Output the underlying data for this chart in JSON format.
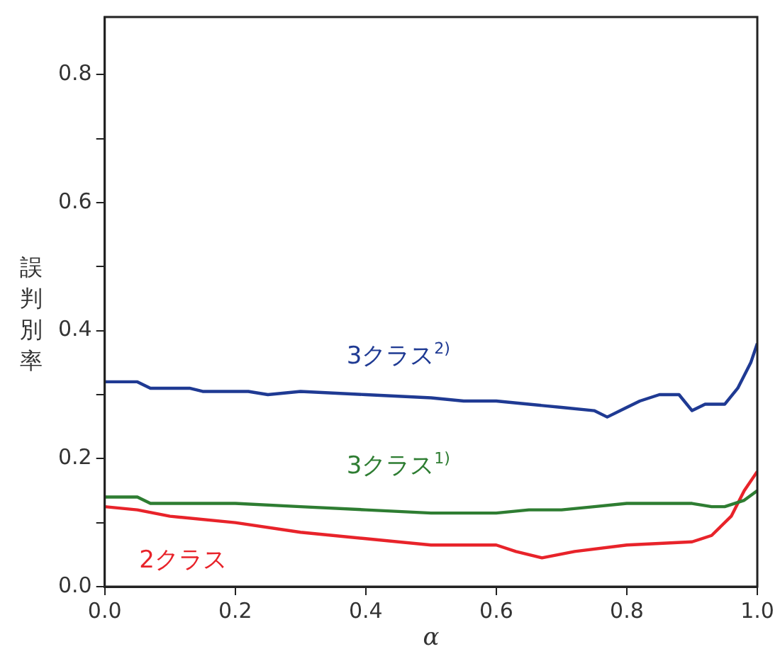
{
  "chart_data": {
    "type": "line",
    "xlabel": "α",
    "ylabel": "誤判別率",
    "xlim": [
      0,
      1
    ],
    "ylim": [
      0,
      0.89
    ],
    "xticks": [
      {
        "value": 0,
        "label": "0.0"
      },
      {
        "value": 0.2,
        "label": "0.2"
      },
      {
        "value": 0.4,
        "label": "0.4"
      },
      {
        "value": 0.6,
        "label": "0.6"
      },
      {
        "value": 0.8,
        "label": "0.8"
      },
      {
        "value": 1,
        "label": "1.0"
      }
    ],
    "yticks": [
      {
        "value": 0,
        "label": "0.0"
      },
      {
        "value": 0.1,
        "label": null
      },
      {
        "value": 0.2,
        "label": "0.2"
      },
      {
        "value": 0.3,
        "label": null
      },
      {
        "value": 0.4,
        "label": "0.4"
      },
      {
        "value": 0.5,
        "label": null
      },
      {
        "value": 0.6,
        "label": "0.6"
      },
      {
        "value": 0.7,
        "label": null
      },
      {
        "value": 0.8,
        "label": "0.8"
      }
    ],
    "grid": false,
    "legend": false,
    "marker": "none",
    "line_style": "solid",
    "series": [
      {
        "name": "3クラス$^{2)}$",
        "color": "#1f3a93",
        "x": [
          0,
          0.05,
          0.07,
          0.13,
          0.15,
          0.22,
          0.25,
          0.3,
          0.4,
          0.5,
          0.55,
          0.6,
          0.65,
          0.7,
          0.75,
          0.77,
          0.8,
          0.82,
          0.85,
          0.88,
          0.9,
          0.92,
          0.95,
          0.97,
          0.99,
          1.0
        ],
        "values": [
          0.32,
          0.32,
          0.31,
          0.31,
          0.305,
          0.305,
          0.3,
          0.305,
          0.3,
          0.295,
          0.29,
          0.29,
          0.285,
          0.28,
          0.275,
          0.265,
          0.28,
          0.29,
          0.3,
          0.3,
          0.275,
          0.285,
          0.285,
          0.31,
          0.35,
          0.38
        ]
      },
      {
        "name": "3クラス$^{1)}$",
        "color": "#2e7d32",
        "x": [
          0,
          0.05,
          0.07,
          0.2,
          0.3,
          0.4,
          0.5,
          0.6,
          0.65,
          0.7,
          0.75,
          0.8,
          0.85,
          0.9,
          0.93,
          0.95,
          0.98,
          1.0
        ],
        "values": [
          0.14,
          0.14,
          0.13,
          0.13,
          0.125,
          0.12,
          0.115,
          0.115,
          0.12,
          0.12,
          0.125,
          0.13,
          0.13,
          0.13,
          0.125,
          0.125,
          0.135,
          0.15
        ]
      },
      {
        "name": "2クラス",
        "color": "#e8232a",
        "x": [
          0,
          0.05,
          0.1,
          0.2,
          0.3,
          0.4,
          0.5,
          0.6,
          0.63,
          0.67,
          0.72,
          0.8,
          0.9,
          0.93,
          0.96,
          0.98,
          1.0
        ],
        "values": [
          0.125,
          0.12,
          0.11,
          0.1,
          0.085,
          0.075,
          0.065,
          0.065,
          0.055,
          0.045,
          0.055,
          0.065,
          0.07,
          0.08,
          0.11,
          0.15,
          0.18
        ]
      }
    ]
  }
}
